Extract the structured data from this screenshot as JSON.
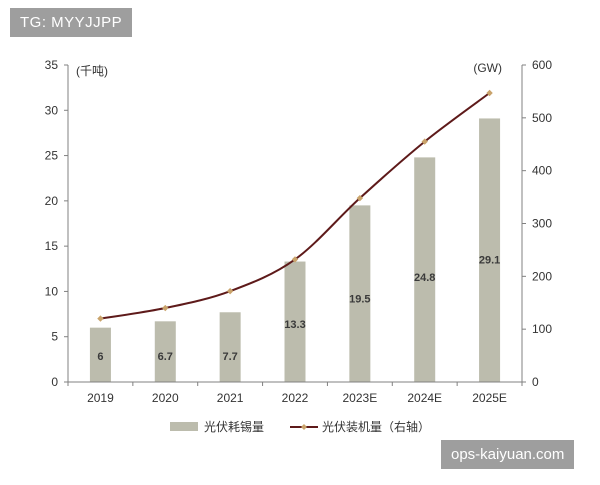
{
  "watermark_top": "TG: MYYJJPP",
  "watermark_bottom": "ops-kaiyuan.com",
  "colors": {
    "bar": "#bcbcad",
    "line": "#5e1a1a",
    "marker": "#c9a36b",
    "axis": "#808080",
    "text": "#333333"
  },
  "chart_data": {
    "type": "bar",
    "categories": [
      "2019",
      "2020",
      "2021",
      "2022",
      "2023E",
      "2024E",
      "2025E"
    ],
    "series": [
      {
        "name": "光伏耗锡量",
        "type": "bar",
        "axis": "left",
        "values": [
          6,
          6.7,
          7.7,
          13.3,
          19.5,
          24.8,
          29.1
        ],
        "labels": [
          "6",
          "6.7",
          "7.7",
          "13.3",
          "19.5",
          "24.8",
          "29.1"
        ]
      },
      {
        "name": "光伏装机量（右轴）",
        "type": "line",
        "axis": "right",
        "values": [
          120,
          140,
          172,
          232,
          348,
          455,
          547
        ]
      }
    ],
    "y_left": {
      "label": "(千吨)",
      "ylim": [
        0,
        35
      ],
      "ticks": [
        "0",
        "5",
        "10",
        "15",
        "20",
        "25",
        "30",
        "35"
      ]
    },
    "y_right": {
      "label": "(GW)",
      "ylim": [
        0,
        600
      ],
      "ticks": [
        "0",
        "100",
        "200",
        "300",
        "400",
        "500",
        "600"
      ]
    },
    "legend_position": "bottom-center",
    "grid": false
  }
}
